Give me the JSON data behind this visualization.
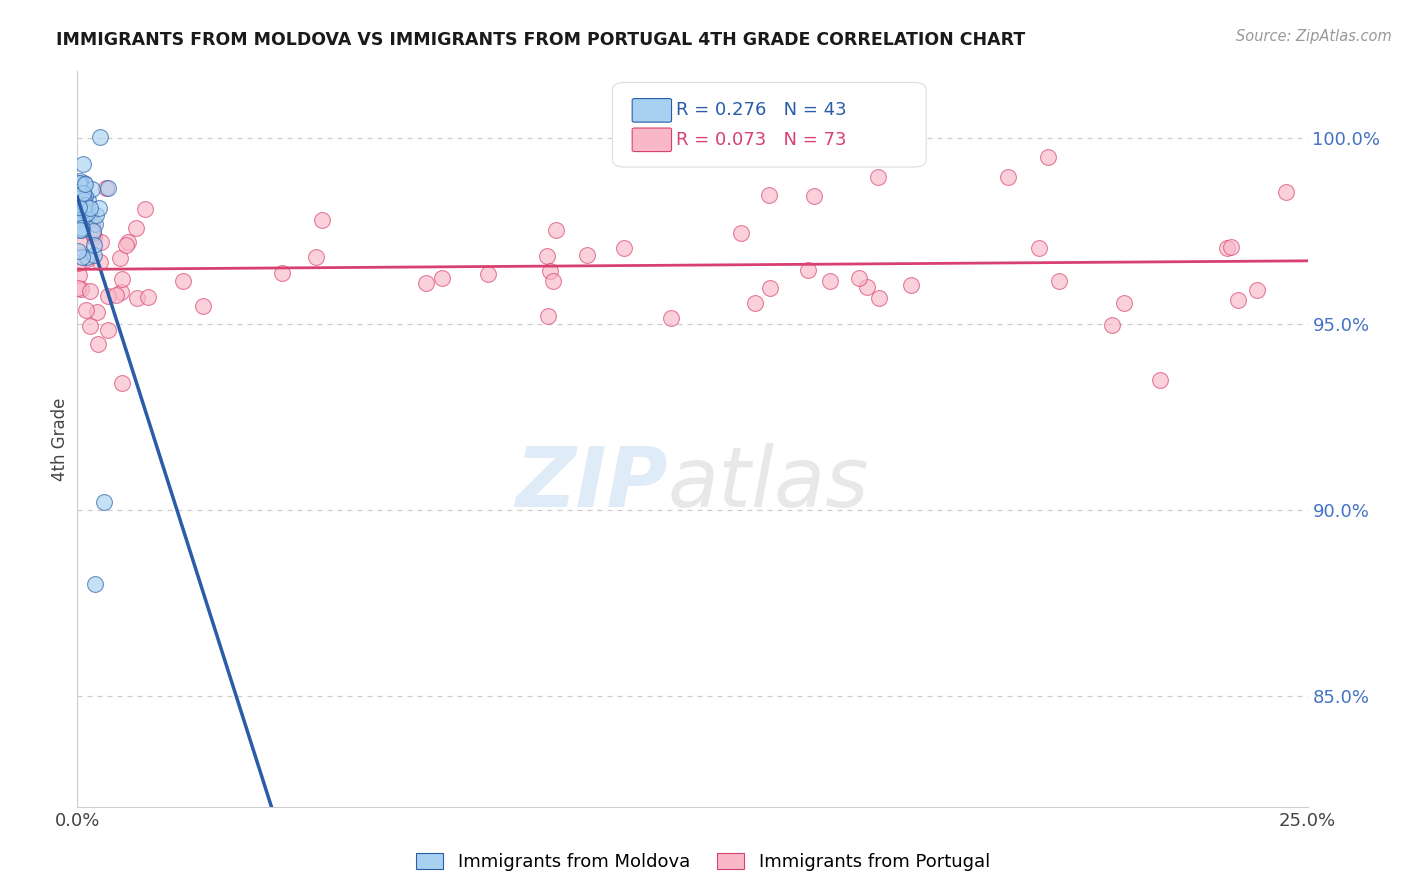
{
  "title": "IMMIGRANTS FROM MOLDOVA VS IMMIGRANTS FROM PORTUGAL 4TH GRADE CORRELATION CHART",
  "source": "Source: ZipAtlas.com",
  "ylabel": "4th Grade",
  "xlim": [
    0.0,
    25.0
  ],
  "ylim": [
    82.0,
    101.8
  ],
  "yticks_right": [
    85.0,
    90.0,
    95.0,
    100.0
  ],
  "ytick_labels_right": [
    "85.0%",
    "90.0%",
    "95.0%",
    "100.0%"
  ],
  "moldova_R": 0.276,
  "moldova_N": 43,
  "portugal_R": 0.073,
  "portugal_N": 73,
  "moldova_color": "#a8d0f0",
  "portugal_color": "#f8b8c8",
  "moldova_line_color": "#2a5ca8",
  "portugal_line_color": "#d84070",
  "legend_moldova": "Immigrants from Moldova",
  "legend_portugal": "Immigrants from Portugal",
  "moldova_seed": 77,
  "portugal_seed": 55
}
